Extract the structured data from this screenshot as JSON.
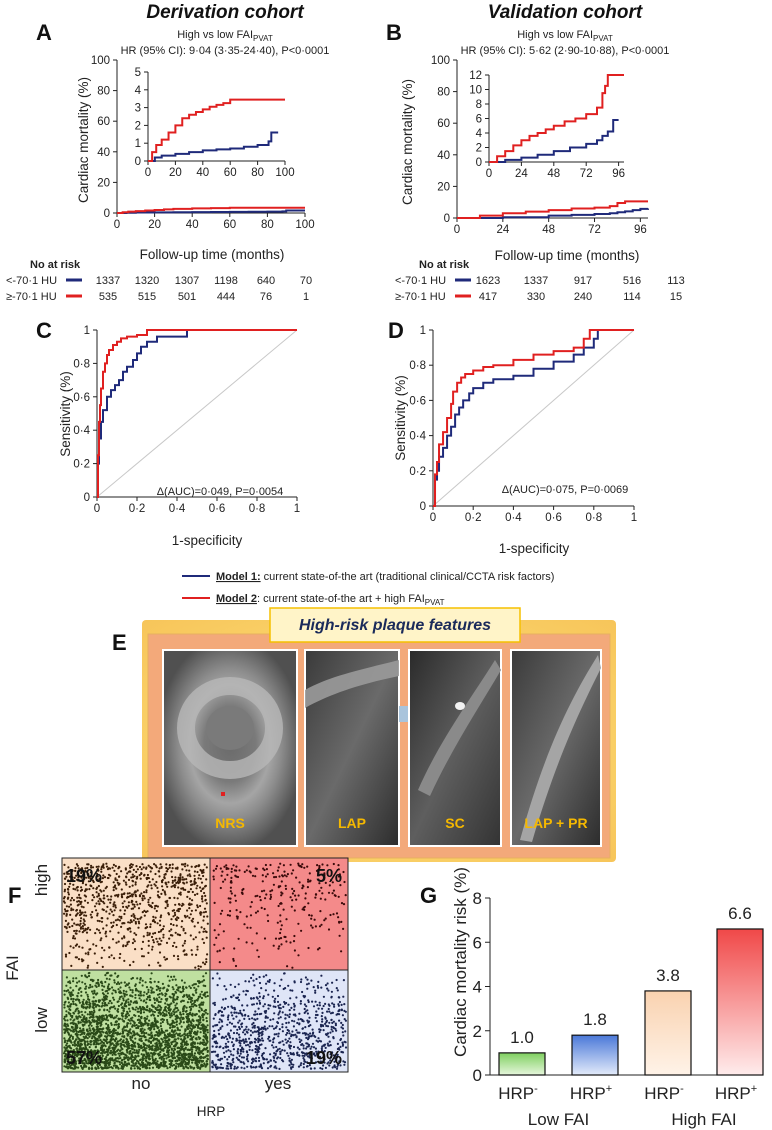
{
  "colors": {
    "model1": "#1f2a7a",
    "model2": "#e02020",
    "gold": "#f5b800",
    "thresholdPanel": "#f7c98a"
  },
  "panels": {
    "A": {
      "label": "A",
      "title": "Derivation cohort",
      "subtitle_prefix": "High vs low FAI",
      "subtitle_sub": "PVAT",
      "hr": "HR (95% CI): 9·04 (3·35-24·40), P<0·0001"
    },
    "B": {
      "label": "B",
      "title": "Validation cohort",
      "subtitle_prefix": "High vs low FAI",
      "subtitle_sub": "PVAT",
      "hr": "HR (95% CI): 5·62 (2·90-10·88), P<0·0001"
    },
    "C": {
      "label": "C",
      "annotation": "Δ(AUC)=0·049, P=0·0054"
    },
    "D": {
      "label": "D",
      "annotation": "Δ(AUC)=0·075, P=0·0069"
    },
    "E": {
      "label": "E",
      "title": "High-risk plaque features",
      "images": [
        "NRS",
        "LAP",
        "SC",
        "LAP + PR"
      ]
    },
    "F": {
      "label": "F"
    },
    "G": {
      "label": "G"
    }
  },
  "km_common": {
    "ylabel": "Cardiac mortality (%)",
    "xlabel": "Follow-up time (months)",
    "at_risk_title": "No at risk",
    "group_low": "<-70·1 HU",
    "group_high": "≥-70·1 HU"
  },
  "roc_common": {
    "ylabel": "Sensitivity (%)",
    "xlabel": "1-specificity"
  },
  "legend": {
    "model1_name": "Model 1:",
    "model1_text": " current state-of-the art (traditional clinical/CCTA risk factors)",
    "model2_name": "Model 2",
    "model2_text": ": current state-of-the art + high FAI",
    "model2_sub": "PVAT"
  },
  "chart_data": [
    {
      "id": "A",
      "type": "line",
      "title": "Derivation cohort",
      "xlabel": "Follow-up time (months)",
      "ylabel": "Cardiac mortality (%)",
      "xlim": [
        0,
        100
      ],
      "ylim": [
        0,
        100
      ],
      "xticks": [
        "0",
        "20",
        "40",
        "60",
        "80",
        "100"
      ],
      "yticks": [
        "0",
        "20",
        "40",
        "60",
        "80",
        "100"
      ],
      "series": [
        {
          "name": "<-70·1 HU",
          "color": "#1f2a7a",
          "x": [
            0,
            5,
            10,
            20,
            30,
            40,
            50,
            60,
            70,
            80,
            88,
            90,
            100
          ],
          "y": [
            0,
            0.2,
            0.3,
            0.4,
            0.5,
            0.6,
            0.65,
            0.7,
            0.8,
            0.9,
            1.1,
            1.6,
            1.6
          ]
        },
        {
          "name": "≥-70·1 HU",
          "color": "#e02020",
          "x": [
            0,
            3,
            6,
            10,
            15,
            20,
            25,
            30,
            40,
            50,
            60,
            70,
            80,
            100
          ],
          "y": [
            0,
            0.5,
            0.9,
            1.2,
            1.6,
            2.0,
            2.4,
            2.7,
            3.0,
            3.2,
            3.45,
            3.45,
            3.45,
            3.45
          ]
        }
      ],
      "inset": {
        "xlim": [
          0,
          100
        ],
        "ylim": [
          0,
          5
        ],
        "xticks": [
          "0",
          "20",
          "40",
          "60",
          "80",
          "100"
        ],
        "yticks": [
          "0",
          "1",
          "2",
          "3",
          "4",
          "5"
        ],
        "series": [
          {
            "name": "<-70·1 HU",
            "color": "#1f2a7a",
            "x": [
              0,
              5,
              10,
              20,
              30,
              40,
              50,
              60,
              70,
              80,
              88,
              90,
              95
            ],
            "y": [
              0,
              0.2,
              0.3,
              0.4,
              0.5,
              0.6,
              0.65,
              0.7,
              0.8,
              0.9,
              1.1,
              1.6,
              1.6
            ]
          },
          {
            "name": "≥-70·1 HU",
            "color": "#e02020",
            "x": [
              0,
              3,
              6,
              10,
              15,
              20,
              25,
              30,
              35,
              40,
              45,
              50,
              55,
              60,
              70,
              80,
              100
            ],
            "y": [
              0,
              0.5,
              0.9,
              1.2,
              1.6,
              2.0,
              2.4,
              2.6,
              2.75,
              2.9,
              3.05,
              3.15,
              3.25,
              3.45,
              3.45,
              3.45,
              3.45
            ]
          }
        ]
      },
      "at_risk": {
        "low": [
          "1337",
          "1320",
          "1307",
          "1198",
          "640",
          "70"
        ],
        "high": [
          "535",
          "515",
          "501",
          "444",
          "76",
          "1"
        ]
      }
    },
    {
      "id": "B",
      "type": "line",
      "title": "Validation cohort",
      "xlabel": "Follow-up time (months)",
      "ylabel": "Cardiac mortality (%)",
      "xlim": [
        0,
        100
      ],
      "ylim": [
        0,
        100
      ],
      "xticks": [
        "0",
        "24",
        "48",
        "72",
        "96"
      ],
      "yticks": [
        "0",
        "20",
        "40",
        "60",
        "80",
        "100"
      ],
      "series": [
        {
          "name": "<-70·1 HU",
          "color": "#1f2a7a",
          "x": [
            0,
            24,
            48,
            60,
            72,
            80,
            84,
            88,
            92,
            96,
            100
          ],
          "y": [
            0,
            0.5,
            1.5,
            2.0,
            2.5,
            3.0,
            3.6,
            4.2,
            5.0,
            5.8,
            6.0
          ]
        },
        {
          "name": "≥-70·1 HU",
          "color": "#e02020",
          "x": [
            0,
            12,
            24,
            36,
            48,
            60,
            72,
            80,
            84,
            88,
            100
          ],
          "y": [
            0,
            1.5,
            3.0,
            4.0,
            5.0,
            6.0,
            6.6,
            7.5,
            9.5,
            10.5,
            10.5
          ]
        }
      ],
      "inset": {
        "xlim": [
          0,
          100
        ],
        "ylim": [
          0,
          12
        ],
        "xticks": [
          "0",
          "24",
          "48",
          "72",
          "96"
        ],
        "yticks": [
          "0",
          "2",
          "4",
          "6",
          "8",
          "10",
          "12"
        ],
        "series": [
          {
            "name": "<-70·1 HU",
            "color": "#1f2a7a",
            "x": [
              0,
              12,
              24,
              36,
              48,
              60,
              72,
              80,
              84,
              88,
              92,
              96
            ],
            "y": [
              0,
              0.3,
              0.6,
              1.0,
              1.5,
              2.0,
              2.5,
              3.0,
              3.6,
              4.2,
              5.8,
              5.8
            ]
          },
          {
            "name": "≥-70·1 HU",
            "color": "#e02020",
            "x": [
              0,
              6,
              12,
              18,
              24,
              30,
              36,
              42,
              48,
              56,
              64,
              72,
              80,
              84,
              86,
              88,
              100
            ],
            "y": [
              0,
              0.8,
              1.5,
              2.3,
              3.0,
              3.6,
              4.0,
              4.5,
              5.0,
              5.6,
              6.0,
              6.6,
              7.5,
              9.5,
              10.5,
              12.0,
              12.0
            ]
          }
        ]
      },
      "at_risk": {
        "low": [
          "1623",
          "1337",
          "917",
          "516",
          "113"
        ],
        "high": [
          "417",
          "330",
          "240",
          "114",
          "15"
        ]
      }
    },
    {
      "id": "C",
      "type": "line",
      "xlabel": "1-specificity",
      "ylabel": "Sensitivity (%)",
      "xlim": [
        0,
        1
      ],
      "ylim": [
        0,
        1
      ],
      "xticks": [
        "0",
        "0·2",
        "0·4",
        "0·6",
        "0·8",
        "1"
      ],
      "yticks": [
        "0",
        "0·2",
        "0·4",
        "0·6",
        "0·8",
        "1"
      ],
      "annotation": "Δ(AUC)=0·049, P=0·0054",
      "series": [
        {
          "name": "Model 1",
          "color": "#1f2a7a",
          "x": [
            0,
            0.005,
            0.01,
            0.02,
            0.03,
            0.05,
            0.07,
            0.09,
            0.11,
            0.13,
            0.15,
            0.18,
            0.2,
            0.22,
            0.25,
            0.3,
            0.45,
            0.45,
            0.6,
            0.8,
            1
          ],
          "y": [
            0,
            0.2,
            0.35,
            0.45,
            0.52,
            0.6,
            0.64,
            0.67,
            0.7,
            0.75,
            0.78,
            0.82,
            0.86,
            0.9,
            0.93,
            0.96,
            0.96,
            1.0,
            1.0,
            1.0,
            1.0
          ]
        },
        {
          "name": "Model 2",
          "color": "#e02020",
          "x": [
            0,
            0.005,
            0.01,
            0.015,
            0.02,
            0.03,
            0.04,
            0.05,
            0.06,
            0.08,
            0.1,
            0.12,
            0.15,
            0.2,
            0.25,
            0.25,
            0.4,
            0.6,
            1
          ],
          "y": [
            0,
            0.25,
            0.45,
            0.55,
            0.65,
            0.75,
            0.8,
            0.85,
            0.88,
            0.91,
            0.93,
            0.95,
            0.96,
            0.97,
            0.97,
            1.0,
            1.0,
            1.0,
            1.0
          ]
        }
      ]
    },
    {
      "id": "D",
      "type": "line",
      "xlabel": "1-specificity",
      "ylabel": "Sensitivity (%)",
      "xlim": [
        0,
        1
      ],
      "ylim": [
        0,
        1
      ],
      "xticks": [
        "0",
        "0·2",
        "0·4",
        "0·6",
        "0·8",
        "1"
      ],
      "yticks": [
        "0",
        "0·2",
        "0·4",
        "0·6",
        "0·8",
        "1"
      ],
      "annotation": "Δ(AUC)=0·075, P=0·0069",
      "series": [
        {
          "name": "Model 1",
          "color": "#1f2a7a",
          "x": [
            0,
            0.01,
            0.02,
            0.03,
            0.05,
            0.07,
            0.09,
            0.11,
            0.13,
            0.15,
            0.18,
            0.2,
            0.25,
            0.3,
            0.4,
            0.5,
            0.6,
            0.7,
            0.75,
            0.8,
            0.82,
            0.85,
            1
          ],
          "y": [
            0,
            0.15,
            0.2,
            0.28,
            0.33,
            0.4,
            0.45,
            0.52,
            0.56,
            0.6,
            0.64,
            0.67,
            0.7,
            0.72,
            0.74,
            0.78,
            0.82,
            0.86,
            0.9,
            0.95,
            1.0,
            1.0,
            1.0
          ]
        },
        {
          "name": "Model 2",
          "color": "#e02020",
          "x": [
            0,
            0.01,
            0.02,
            0.03,
            0.05,
            0.07,
            0.09,
            0.1,
            0.12,
            0.14,
            0.16,
            0.2,
            0.25,
            0.3,
            0.4,
            0.5,
            0.6,
            0.7,
            0.75,
            0.78,
            1
          ],
          "y": [
            0,
            0.18,
            0.25,
            0.35,
            0.42,
            0.5,
            0.58,
            0.65,
            0.7,
            0.73,
            0.75,
            0.77,
            0.79,
            0.8,
            0.83,
            0.86,
            0.88,
            0.9,
            0.95,
            1.0,
            1.0
          ]
        }
      ]
    },
    {
      "id": "F",
      "type": "scatter",
      "xlabel": "HRP",
      "ylabel": "FAI",
      "categories_x": [
        "no",
        "yes"
      ],
      "categories_y": [
        "low",
        "high"
      ],
      "quadrants": [
        {
          "hrp": "no",
          "fai": "high",
          "percent": "19%",
          "color": "#fadfc6"
        },
        {
          "hrp": "yes",
          "fai": "high",
          "percent": "5%",
          "color": "#f48a8a"
        },
        {
          "hrp": "no",
          "fai": "low",
          "percent": "57%",
          "color": "#bfe0a0"
        },
        {
          "hrp": "yes",
          "fai": "low",
          "percent": "19%",
          "color": "#dfe5f7"
        }
      ]
    },
    {
      "id": "G",
      "type": "bar",
      "ylabel": "Cardiac mortality risk (%)",
      "ylim": [
        0,
        8
      ],
      "yticks": [
        "0",
        "2",
        "4",
        "6",
        "8"
      ],
      "categories": [
        "HRP-",
        "HRP+",
        "HRP-",
        "HRP+"
      ],
      "category_base": [
        "HRP",
        "HRP",
        "HRP",
        "HRP"
      ],
      "category_sup": [
        "-",
        "+",
        "-",
        "+"
      ],
      "groups": [
        "Low FAI",
        "High FAI"
      ],
      "values": [
        1.0,
        1.8,
        3.8,
        6.6
      ],
      "value_labels": [
        "1.0",
        "1.8",
        "3.8",
        "6.6"
      ],
      "bar_colors": [
        [
          "#7fd060",
          "#e6f6dc"
        ],
        [
          "#4a78d8",
          "#e3ebfa"
        ],
        [
          "#fadcc0",
          "#fff2e6"
        ],
        [
          "#f05050",
          "#ffeaea"
        ]
      ]
    }
  ]
}
